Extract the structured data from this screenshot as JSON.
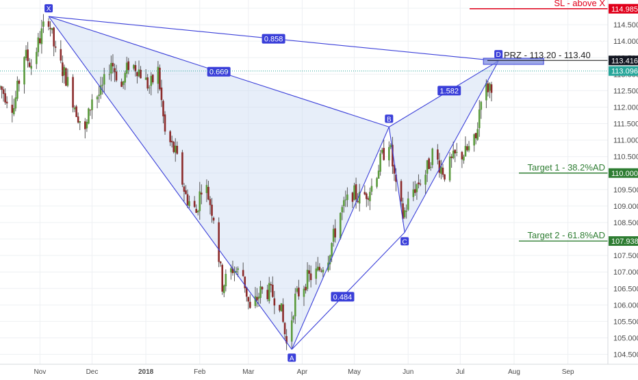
{
  "chart_data": {
    "type": "candlestick",
    "y_axis": {
      "ylim": [
        104.2,
        115.25
      ],
      "ticks": [
        "104.500",
        "105.000",
        "105.500",
        "106.000",
        "106.500",
        "107.000",
        "107.500",
        "108.000",
        "108.500",
        "109.000",
        "109.500",
        "110.000",
        "110.500",
        "111.000",
        "111.500",
        "112.000",
        "112.500",
        "113.000",
        "113.500",
        "114.000",
        "114.500",
        "115.000"
      ],
      "grid": true
    },
    "x_axis": {
      "labels": [
        {
          "text": "Nov",
          "date": "2017-11-01",
          "bold": false
        },
        {
          "text": "Dec",
          "date": "2017-12-01",
          "bold": false
        },
        {
          "text": "2018",
          "date": "2018-01-01",
          "bold": true
        },
        {
          "text": "Feb",
          "date": "2018-02-01",
          "bold": false
        },
        {
          "text": "Mar",
          "date": "2018-03-01",
          "bold": false
        },
        {
          "text": "Apr",
          "date": "2018-04-01",
          "bold": false
        },
        {
          "text": "May",
          "date": "2018-05-01",
          "bold": false
        },
        {
          "text": "Jun",
          "date": "2018-06-01",
          "bold": false
        },
        {
          "text": "Jul",
          "date": "2018-07-01",
          "bold": false
        },
        {
          "text": "Aug",
          "date": "2018-08-01",
          "bold": false
        },
        {
          "text": "Sep",
          "date": "2018-09-01",
          "bold": false
        }
      ],
      "range": [
        "2017-10-09",
        "2018-09-24"
      ],
      "grid": true
    },
    "price_path": [
      [
        "2017-10-09",
        112.6
      ],
      [
        "2017-10-17",
        112.0
      ],
      [
        "2017-10-23",
        113.6
      ],
      [
        "2017-10-27",
        113.3
      ],
      [
        "2017-11-03",
        114.4
      ],
      [
        "2017-11-06",
        114.7
      ],
      [
        "2017-11-10",
        113.6
      ],
      [
        "2017-11-16",
        112.9
      ],
      [
        "2017-11-22",
        111.9
      ],
      [
        "2017-11-27",
        111.2
      ],
      [
        "2017-12-01",
        112.3
      ],
      [
        "2017-12-06",
        112.4
      ],
      [
        "2017-12-12",
        113.4
      ],
      [
        "2017-12-18",
        112.6
      ],
      [
        "2017-12-22",
        113.3
      ],
      [
        "2017-12-27",
        113.2
      ],
      [
        "2018-01-03",
        112.6
      ],
      [
        "2018-01-08",
        113.1
      ],
      [
        "2018-01-12",
        111.2
      ],
      [
        "2018-01-18",
        110.6
      ],
      [
        "2018-01-24",
        109.3
      ],
      [
        "2018-01-30",
        108.8
      ],
      [
        "2018-02-03",
        109.9
      ],
      [
        "2018-02-09",
        108.7
      ],
      [
        "2018-02-14",
        106.6
      ],
      [
        "2018-02-20",
        107.1
      ],
      [
        "2018-02-26",
        106.9
      ],
      [
        "2018-03-02",
        105.8
      ],
      [
        "2018-03-08",
        106.4
      ],
      [
        "2018-03-13",
        106.4
      ],
      [
        "2018-03-19",
        106.1
      ],
      [
        "2018-03-23",
        104.8
      ],
      [
        "2018-03-28",
        106.2
      ],
      [
        "2018-04-04",
        106.8
      ],
      [
        "2018-04-10",
        107.0
      ],
      [
        "2018-04-16",
        107.5
      ],
      [
        "2018-04-23",
        108.8
      ],
      [
        "2018-04-30",
        109.4
      ],
      [
        "2018-05-05",
        109.2
      ],
      [
        "2018-05-11",
        109.6
      ],
      [
        "2018-05-17",
        110.5
      ],
      [
        "2018-05-21",
        111.0
      ],
      [
        "2018-05-25",
        109.5
      ],
      [
        "2018-05-29",
        108.7
      ],
      [
        "2018-06-04",
        109.5
      ],
      [
        "2018-06-11",
        110.0
      ],
      [
        "2018-06-15",
        110.6
      ],
      [
        "2018-06-22",
        110.0
      ],
      [
        "2018-06-28",
        110.5
      ],
      [
        "2018-07-04",
        110.6
      ],
      [
        "2018-07-10",
        111.0
      ],
      [
        "2018-07-13",
        112.4
      ],
      [
        "2018-07-19",
        112.7
      ]
    ],
    "harmonic_pattern": {
      "points": [
        {
          "label": "X",
          "date": "2017-11-06",
          "price": 114.75
        },
        {
          "label": "A",
          "date": "2018-03-26",
          "price": 104.65
        },
        {
          "label": "B",
          "date": "2018-05-21",
          "price": 111.4
        },
        {
          "label": "C",
          "date": "2018-05-30",
          "price": 108.2
        },
        {
          "label": "D",
          "date": "2018-07-23",
          "price": 113.4
        }
      ],
      "ratios": [
        "0.858",
        "0.669",
        "1.582",
        "0.484"
      ],
      "prz_label": "PRZ - 113.20 - 113.40"
    },
    "levels": [
      {
        "label": "SL - above X",
        "price": 114.985,
        "value_label": "114.985",
        "color": "#e0001a"
      },
      {
        "label": "Target 1 - 38.2%AD",
        "price": 110.0,
        "value_label": "110.000",
        "color": "#2e7d32"
      },
      {
        "label": "Target 2 - 61.8%AD",
        "price": 107.938,
        "value_label": "107.938",
        "color": "#2e7d32"
      }
    ],
    "price_tags": [
      {
        "value_label": "113.416",
        "price": 113.416,
        "color": "#131722"
      },
      {
        "value_label": "113.096",
        "price": 113.096,
        "color": "#26a69a"
      }
    ],
    "colors": {
      "up": "#5a9a3c",
      "down": "#8b2a2a",
      "pattern": "#3a3fd9",
      "pattern_fill": "#c9d9f1",
      "grid": "#eef0f3"
    }
  }
}
